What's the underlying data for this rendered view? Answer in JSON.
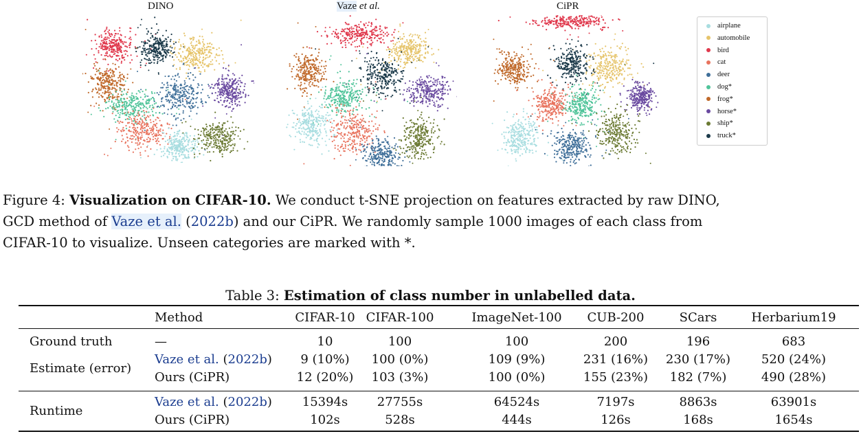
{
  "figure": {
    "panels": [
      {
        "title": "DINO"
      },
      {
        "title": "Vaze",
        "title_em": "et al."
      },
      {
        "title": "CiPR"
      }
    ],
    "legend": [
      {
        "label": "airplane",
        "color": "#a8dde0"
      },
      {
        "label": "automobile",
        "color": "#e6c46b"
      },
      {
        "label": "bird",
        "color": "#e0394d"
      },
      {
        "label": "cat",
        "color": "#e8735e"
      },
      {
        "label": "deer",
        "color": "#3f6f99"
      },
      {
        "label": "dog*",
        "color": "#50c49a"
      },
      {
        "label": "frog*",
        "color": "#c0692a"
      },
      {
        "label": "horse*",
        "color": "#6a4aa0"
      },
      {
        "label": "ship*",
        "color": "#6b7a33"
      },
      {
        "label": "truck*",
        "color": "#1c3a4a"
      }
    ]
  },
  "caption": {
    "prefix": "Figure 4: ",
    "bold": "Visualization on CIFAR-10.",
    "text1": " We conduct t-SNE projection on features extracted by raw DINO,",
    "text2a": "GCD method of ",
    "cite_name": "Vaze et al.",
    "text2b": " (",
    "cite_year": "2022b",
    "text2c": ") and our CiPR. We randomly sample 1000 images of each class from",
    "text3": "CIFAR-10 to visualize. Unseen categories are marked with *."
  },
  "table": {
    "title_prefix": "Table 3: ",
    "title_bold": "Estimation of class number in unlabelled data.",
    "headers": [
      "Method",
      "CIFAR-10",
      "CIFAR-100",
      "ImageNet-100",
      "CUB-200",
      "SCars",
      "Herbarium19"
    ],
    "ground_truth": {
      "label": "Ground truth",
      "method": "—",
      "values": [
        "10",
        "100",
        "100",
        "200",
        "196",
        "683"
      ]
    },
    "estimate_label": "Estimate (error)",
    "estimate_rows": [
      {
        "method_name": "Vaze et al.",
        "method_year": "2022b",
        "values": [
          "9 (10%)",
          "100 (0%)",
          "109 (9%)",
          "231 (16%)",
          "230 (17%)",
          "520 (24%)"
        ]
      },
      {
        "method": "Ours (CiPR)",
        "values": [
          "12 (20%)",
          "103 (3%)",
          "100 (0%)",
          "155 (23%)",
          "182 (7%)",
          "490 (28%)"
        ]
      }
    ],
    "runtime_label": "Runtime",
    "runtime_rows": [
      {
        "method_name": "Vaze et al.",
        "method_year": "2022b",
        "values": [
          "15394s",
          "27755s",
          "64524s",
          "7197s",
          "8863s",
          "63901s"
        ]
      },
      {
        "method": "Ours (CiPR)",
        "values": [
          "102s",
          "528s",
          "444s",
          "126s",
          "168s",
          "1654s"
        ]
      }
    ]
  }
}
